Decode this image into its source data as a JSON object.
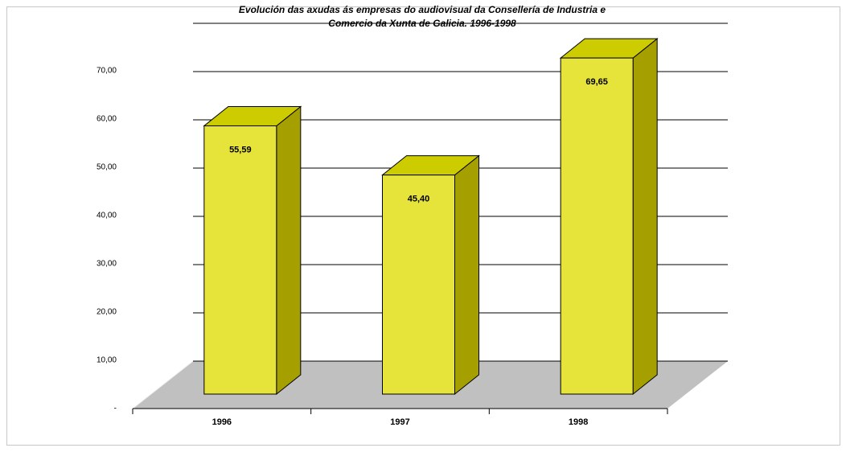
{
  "chart_data": {
    "type": "bar3d",
    "title": [
      "Evolución das axudas ás empresas do audiovisual da  Consellería de Industria e",
      "Comercio da Xunta de Galicia. 1996-1998"
    ],
    "categories": [
      "1996",
      "1997",
      "1998"
    ],
    "values": [
      55.59,
      45.4,
      69.65
    ],
    "value_labels": [
      "55,59",
      "45,40",
      "69,65"
    ],
    "color": "#e6e33a",
    "ylim": [
      0,
      70
    ],
    "yticks": [
      {
        "value": 0,
        "label": "-"
      },
      {
        "value": 10,
        "label": "10,00"
      },
      {
        "value": 20,
        "label": "20,00"
      },
      {
        "value": 30,
        "label": "30,00"
      },
      {
        "value": 40,
        "label": "40,00"
      },
      {
        "value": 50,
        "label": "50,00"
      },
      {
        "value": 60,
        "label": "60,00"
      },
      {
        "value": 70,
        "label": "70,00"
      }
    ],
    "grid": true
  }
}
